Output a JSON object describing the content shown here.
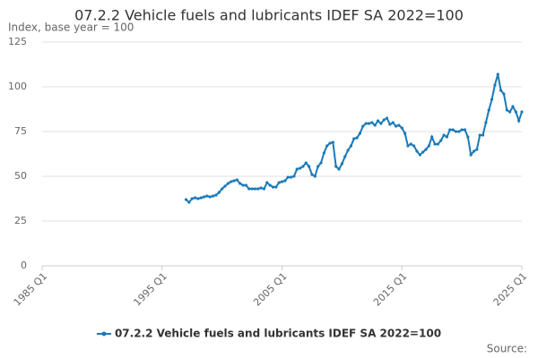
{
  "chart_data": {
    "type": "line",
    "title": "07.2.2 Vehicle fuels and lubricants IDEF SA 2022=100",
    "y_label": "Index, base year = 100",
    "source": "Source:",
    "categories": [
      "1985 Q1",
      null,
      null,
      null,
      null,
      null,
      null,
      null,
      null,
      null,
      null,
      null,
      null,
      null,
      null,
      null,
      null,
      null,
      null,
      null,
      null,
      null,
      null,
      null,
      null,
      null,
      null,
      null,
      null,
      null,
      null,
      null,
      null,
      null,
      null,
      null,
      null,
      null,
      null,
      null,
      "1995 Q1",
      null,
      null,
      null,
      null,
      null,
      null,
      null,
      null,
      null,
      null,
      null,
      null,
      null,
      null,
      null,
      null,
      null,
      null,
      null,
      null,
      null,
      null,
      null,
      null,
      null,
      null,
      null,
      null,
      null,
      null,
      null,
      null,
      null,
      null,
      null,
      null,
      null,
      null,
      null,
      "2005 Q1",
      null,
      null,
      null,
      null,
      null,
      null,
      null,
      null,
      null,
      null,
      null,
      null,
      null,
      null,
      null,
      null,
      null,
      null,
      null,
      null,
      null,
      null,
      null,
      null,
      null,
      null,
      null,
      null,
      null,
      null,
      null,
      null,
      null,
      null,
      null,
      null,
      null,
      null,
      null,
      "2015 Q1",
      null,
      null,
      null,
      null,
      null,
      null,
      null,
      null,
      null,
      null,
      null,
      null,
      null,
      null,
      null,
      null,
      null,
      null,
      null,
      null,
      null,
      null,
      null,
      null,
      null,
      null,
      null,
      null,
      null,
      null,
      null,
      null,
      null,
      null,
      null,
      null,
      null,
      null,
      null,
      "2025 Q1"
    ],
    "series": [
      {
        "name": "07.2.2 Vehicle fuels and lubricants IDEF SA 2022=100",
        "color": "#1a7ab8",
        "values": [
          null,
          null,
          null,
          null,
          null,
          null,
          null,
          null,
          null,
          null,
          null,
          null,
          null,
          null,
          null,
          null,
          null,
          null,
          null,
          null,
          null,
          null,
          null,
          null,
          null,
          null,
          null,
          null,
          null,
          null,
          null,
          null,
          null,
          null,
          null,
          null,
          null,
          null,
          null,
          null,
          null,
          null,
          null,
          null,
          null,
          null,
          null,
          null,
          37,
          35.5,
          37.5,
          38,
          37.5,
          38,
          38.5,
          39,
          38.5,
          39,
          39.5,
          41,
          43,
          44.5,
          46,
          47,
          47.5,
          48,
          46,
          45,
          45,
          43,
          43,
          43,
          43,
          43.5,
          43,
          46.5,
          45,
          44,
          44,
          46.5,
          47,
          47.5,
          49.5,
          49.5,
          50,
          54,
          54.5,
          55.5,
          57.5,
          55.5,
          51,
          50,
          55.5,
          57.5,
          63,
          67,
          68.5,
          69,
          55.5,
          54,
          57,
          61,
          64.5,
          67,
          71,
          71.5,
          74,
          78,
          79.5,
          79.5,
          80,
          78.5,
          81,
          79.5,
          81.5,
          82.5,
          79,
          80,
          78,
          78.5,
          77,
          74,
          67,
          68,
          67,
          64,
          62,
          63.5,
          65,
          67,
          72,
          68,
          68,
          70,
          73,
          72,
          76,
          76,
          75,
          75,
          76,
          76,
          72,
          62,
          64,
          65,
          73,
          73,
          80,
          87,
          93,
          101,
          107,
          98,
          96,
          87,
          86,
          89,
          86,
          81,
          86
        ]
      }
    ],
    "ylim": [
      0,
      125
    ],
    "yticks": [
      0,
      25,
      50,
      75,
      100,
      125
    ],
    "grid": true
  }
}
